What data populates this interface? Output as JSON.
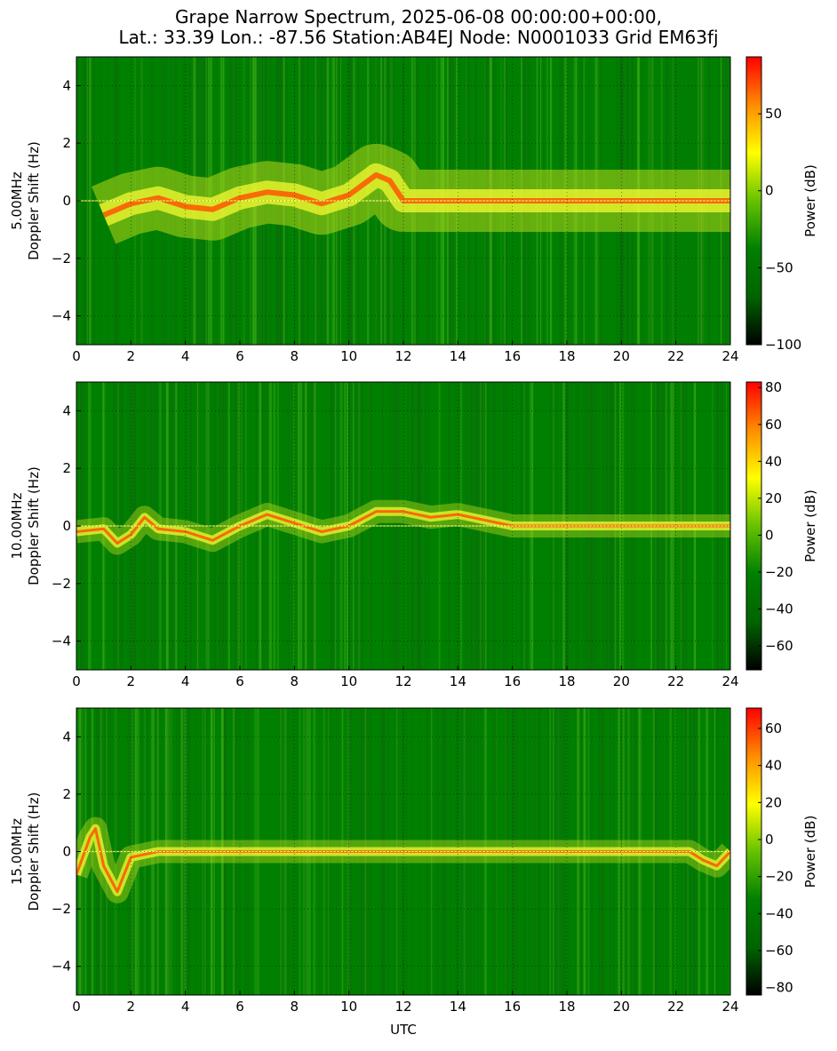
{
  "figure": {
    "title_line1": "Grape Narrow Spectrum, 2025-06-08 00:00:00+00:00,",
    "title_line2": "Lat.: 33.39 Lon.: -87.56 Station:AB4EJ Node: N0001033 Grid EM63fj",
    "xlabel": "UTC",
    "colormap": [
      "#000000",
      "#006400",
      "#008000",
      "#66c200",
      "#ffff00",
      "#ff8c00",
      "#ff0000"
    ]
  },
  "chart_data": [
    {
      "type": "heatmap",
      "ylabel_line1": "5.00MHz",
      "ylabel_line2": "Doppler Shift (Hz)",
      "xlim": [
        0,
        24
      ],
      "ylim": [
        -5,
        5
      ],
      "xticks": [
        "0",
        "2",
        "4",
        "6",
        "8",
        "10",
        "12",
        "14",
        "16",
        "18",
        "20",
        "22",
        "24"
      ],
      "yticks": [
        "4",
        "2",
        "0",
        "−2",
        "−4"
      ],
      "colorbar_label": "Power (dB)",
      "colorbar_range": [
        -100,
        87
      ],
      "colorbar_ticks": [
        "50",
        "0",
        "−50",
        "−100"
      ],
      "grid": true,
      "doppler_trace": {
        "utc": [
          1,
          2,
          3,
          4,
          5,
          6,
          7,
          8,
          9,
          10,
          11,
          11.5,
          12,
          14,
          24
        ],
        "hz": [
          -0.5,
          -0.1,
          0.1,
          -0.2,
          -0.3,
          0.1,
          0.3,
          0.2,
          -0.1,
          0.2,
          0.9,
          0.7,
          0.0,
          0.0,
          0.0
        ]
      }
    },
    {
      "type": "heatmap",
      "ylabel_line1": "10.00MHz",
      "ylabel_line2": "Doppler Shift (Hz)",
      "xlim": [
        0,
        24
      ],
      "ylim": [
        -5,
        5
      ],
      "xticks": [
        "0",
        "2",
        "4",
        "6",
        "8",
        "10",
        "12",
        "14",
        "16",
        "18",
        "20",
        "22",
        "24"
      ],
      "yticks": [
        "4",
        "2",
        "0",
        "−2",
        "−4"
      ],
      "colorbar_label": "Power (dB)",
      "colorbar_range": [
        -73,
        83
      ],
      "colorbar_ticks": [
        "80",
        "60",
        "40",
        "20",
        "0",
        "−20",
        "−40",
        "−60"
      ],
      "grid": true,
      "doppler_trace": {
        "utc": [
          0,
          1,
          1.5,
          2,
          2.5,
          3,
          4,
          5,
          6,
          7,
          8,
          9,
          10,
          11,
          12,
          13,
          14,
          16,
          18,
          20,
          22,
          24
        ],
        "hz": [
          -0.2,
          -0.1,
          -0.6,
          -0.3,
          0.3,
          -0.1,
          -0.2,
          -0.5,
          0.0,
          0.4,
          0.1,
          -0.2,
          0.0,
          0.5,
          0.5,
          0.3,
          0.4,
          0.0,
          0.0,
          0.0,
          0.0,
          0.0
        ]
      }
    },
    {
      "type": "heatmap",
      "ylabel_line1": "15.00MHz",
      "ylabel_line2": "Doppler Shift (Hz)",
      "xlim": [
        0,
        24
      ],
      "ylim": [
        -5,
        5
      ],
      "xticks": [
        "0",
        "2",
        "4",
        "6",
        "8",
        "10",
        "12",
        "14",
        "16",
        "18",
        "20",
        "22",
        "24"
      ],
      "yticks": [
        "4",
        "2",
        "0",
        "−2",
        "−4"
      ],
      "colorbar_label": "Power (dB)",
      "colorbar_range": [
        -84,
        71
      ],
      "colorbar_ticks": [
        "60",
        "40",
        "20",
        "0",
        "−20",
        "−40",
        "−60",
        "−80"
      ],
      "grid": true,
      "xlabel": "UTC",
      "doppler_trace": {
        "utc": [
          0,
          0.5,
          0.7,
          1.0,
          1.5,
          2.0,
          3,
          10,
          12,
          16,
          20,
          22.5,
          23,
          23.5,
          24
        ],
        "hz": [
          -0.8,
          0.5,
          0.8,
          -0.5,
          -1.4,
          -0.2,
          0.0,
          0.0,
          0.0,
          0.0,
          0.0,
          0.0,
          -0.3,
          -0.5,
          0.0
        ]
      }
    }
  ]
}
